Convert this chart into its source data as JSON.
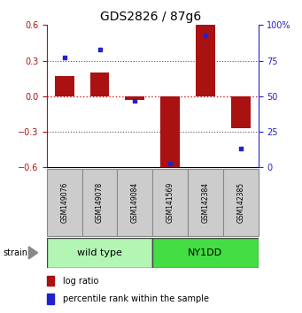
{
  "title": "GDS2826 / 87g6",
  "samples": [
    "GSM149076",
    "GSM149078",
    "GSM149084",
    "GSM141569",
    "GSM142384",
    "GSM142385"
  ],
  "log_ratio": [
    0.17,
    0.2,
    -0.03,
    -0.62,
    0.6,
    -0.27
  ],
  "percentile": [
    77,
    83,
    47,
    3,
    93,
    13
  ],
  "groups": [
    {
      "label": "wild type",
      "indices": [
        0,
        1,
        2
      ],
      "color": "#b3f5b3"
    },
    {
      "label": "NY1DD",
      "indices": [
        3,
        4,
        5
      ],
      "color": "#44dd44"
    }
  ],
  "ylim_left": [
    -0.6,
    0.6
  ],
  "ylim_right": [
    0,
    100
  ],
  "yticks_left": [
    -0.6,
    -0.3,
    0.0,
    0.3,
    0.6
  ],
  "yticks_right": [
    0,
    25,
    50,
    75,
    100
  ],
  "yticklabels_right": [
    "0",
    "25",
    "50",
    "75",
    "100%"
  ],
  "bar_color": "#aa1111",
  "dot_color": "#2222cc",
  "zero_line_color": "#cc2222",
  "dotted_line_color": "#555555",
  "background_color": "#ffffff",
  "bar_width": 0.55,
  "legend_bar_label": "log ratio",
  "legend_dot_label": "percentile rank within the sample",
  "strain_label": "strain"
}
